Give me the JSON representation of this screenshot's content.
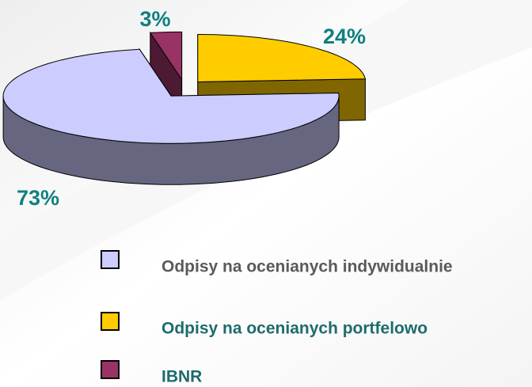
{
  "chart_data": {
    "type": "pie",
    "categories": [
      "Odpisy na ocenianych indywidualnie",
      "Odpisy na ocenianych portfelowo",
      "IBNR"
    ],
    "values": [
      73,
      24,
      3
    ],
    "value_labels": [
      "73%",
      "24%",
      "3%"
    ],
    "colors": [
      "#ccccff",
      "#ffcc00",
      "#993366"
    ],
    "legend": "bottom"
  }
}
